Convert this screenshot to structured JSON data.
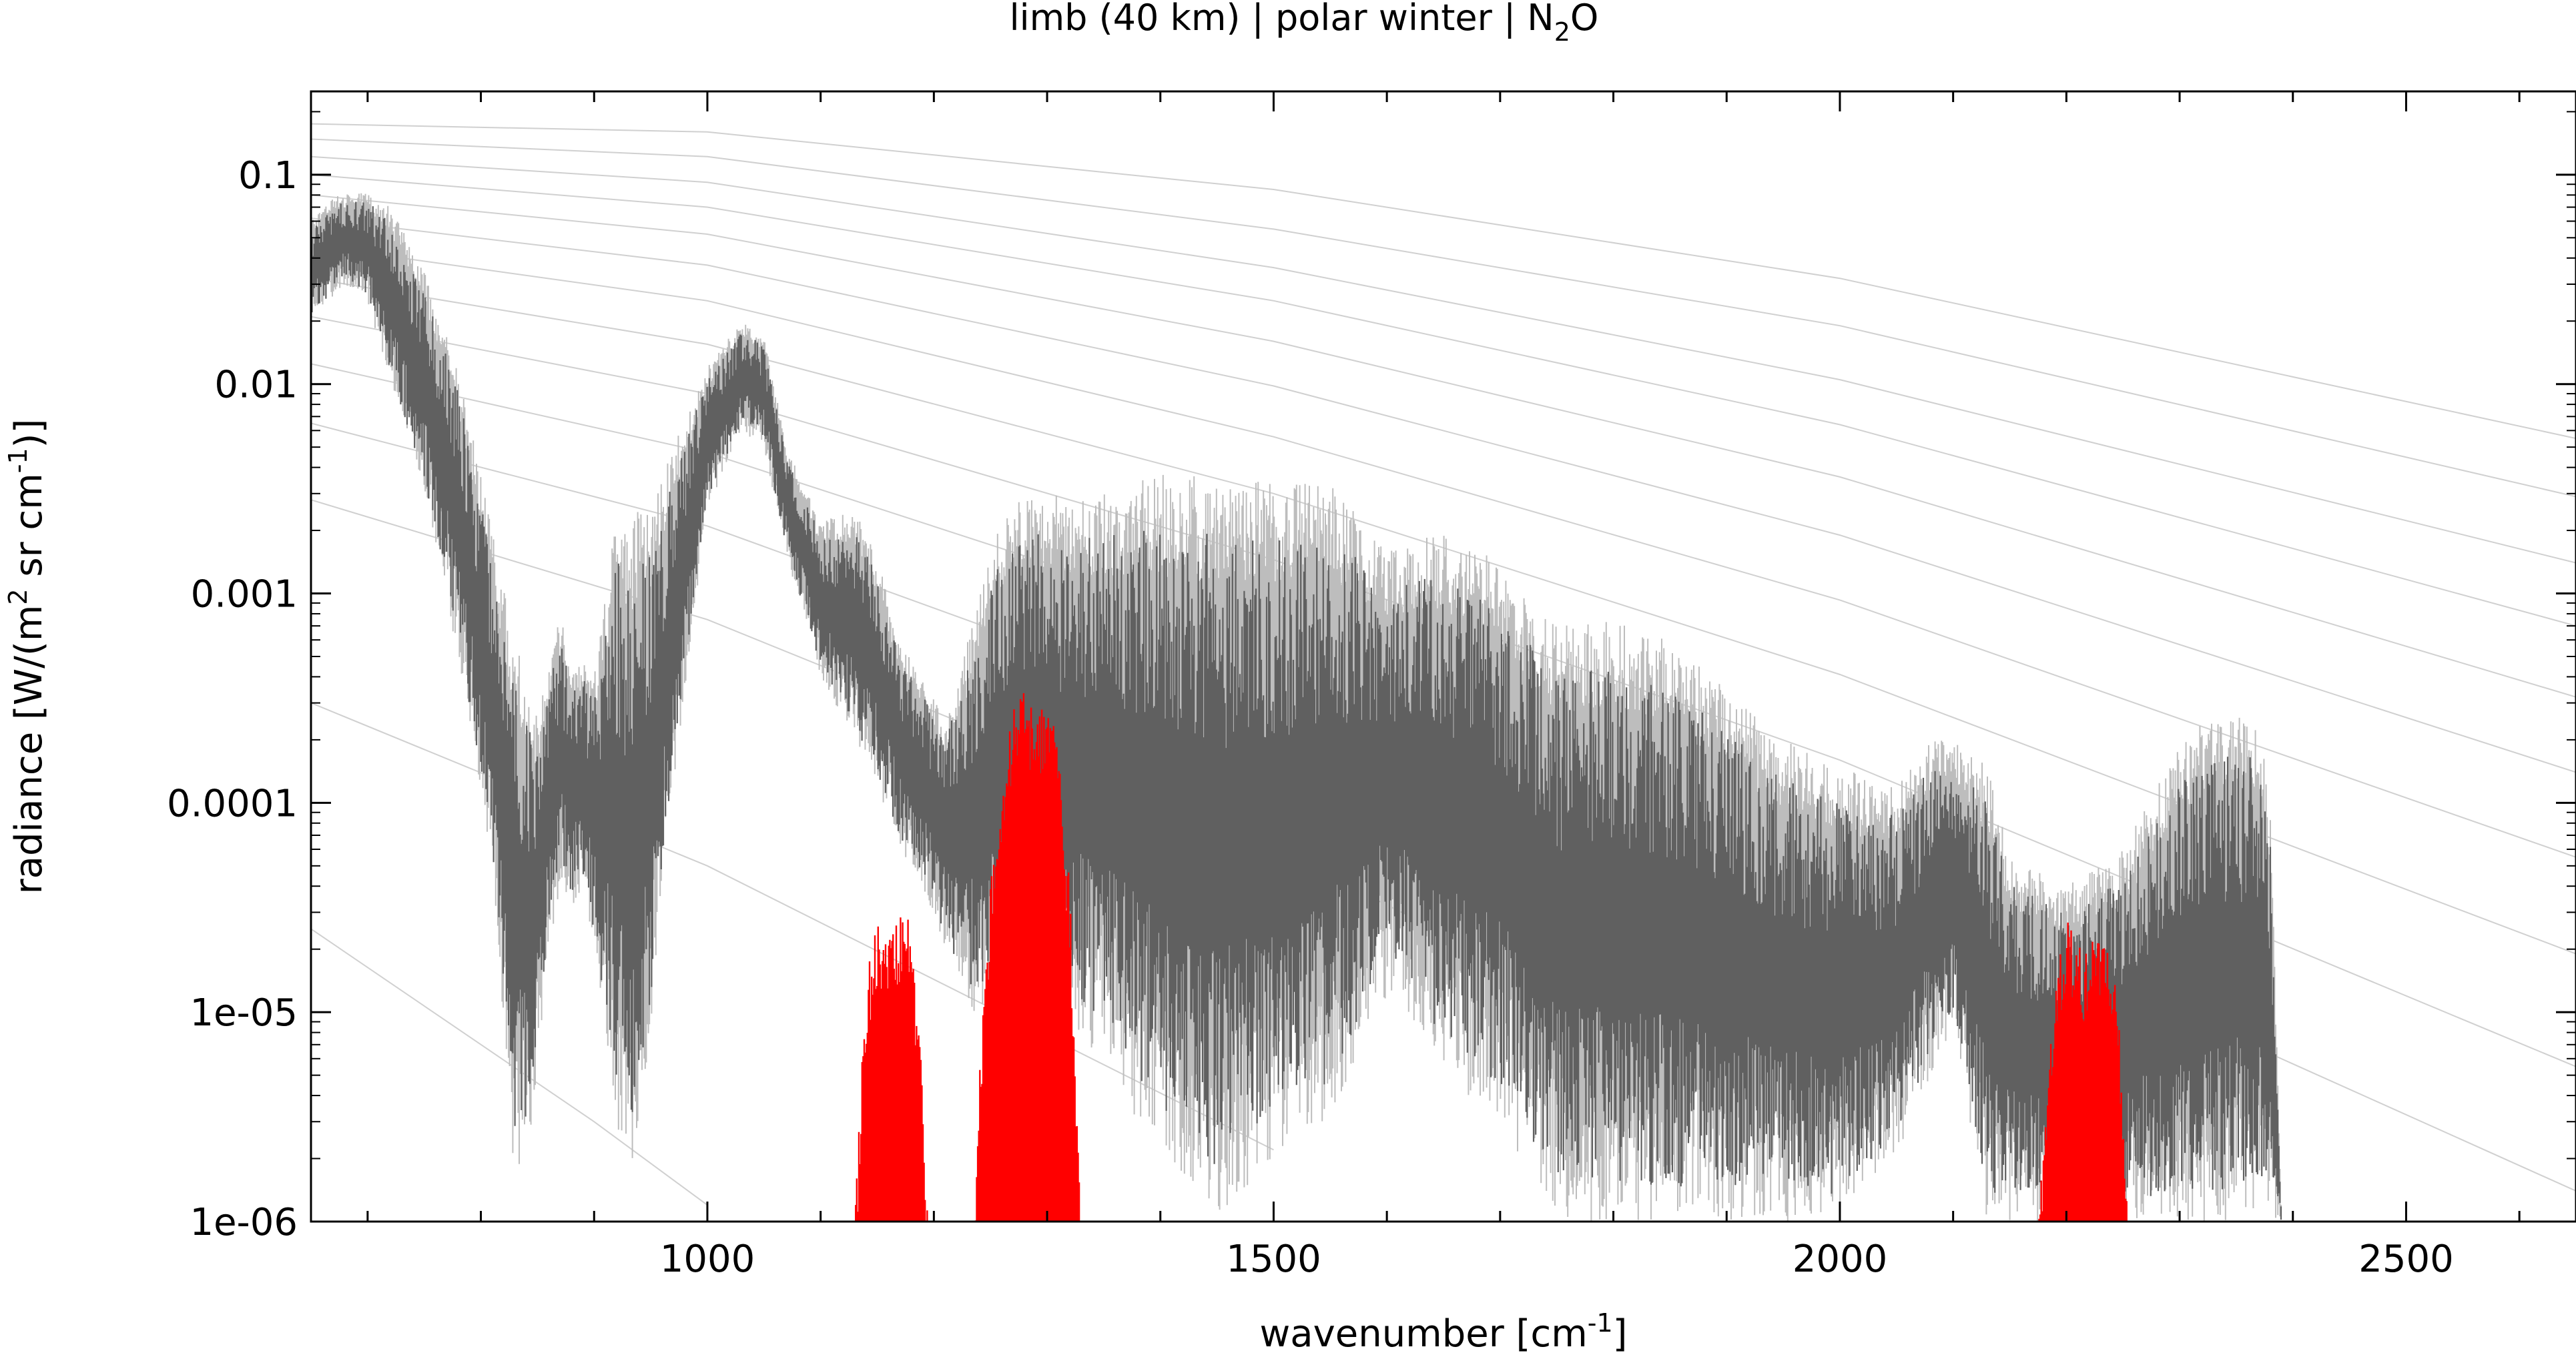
{
  "chart_data": {
    "type": "line",
    "title": {
      "prefix": "limb (40 km) | polar winter | N",
      "sub": "2",
      "suffix": "O"
    },
    "xlabel": {
      "prefix": "wavenumber [cm",
      "sup": "-1",
      "suffix": "]"
    },
    "ylabel": {
      "part1": "radiance [W/(m",
      "sup1": "2",
      "part2": " sr cm",
      "sup2": "-1",
      "part3": ")]"
    },
    "xlim": [
      650,
      2650
    ],
    "ylim": [
      1e-06,
      0.25
    ],
    "yscale": "log",
    "x_ticks": [
      {
        "value": 1000,
        "label": "1000"
      },
      {
        "value": 1500,
        "label": "1500"
      },
      {
        "value": 2000,
        "label": "2000"
      },
      {
        "value": 2500,
        "label": "2500"
      }
    ],
    "y_ticks": [
      {
        "value": 0.1,
        "label": "0.1"
      },
      {
        "value": 0.01,
        "label": "0.01"
      },
      {
        "value": 0.001,
        "label": "0.001"
      },
      {
        "value": 0.0001,
        "label": "0.0001"
      },
      {
        "value": 1e-05,
        "label": "1e-05"
      },
      {
        "value": 1e-06,
        "label": "1e-06"
      }
    ],
    "grid": false,
    "legend": "none",
    "colors": {
      "total_dark": "#606060",
      "total_light": "#bdbdbd",
      "target_gas": "#ff0000",
      "reference_curves": "#d0d0d0"
    },
    "reference_curves": [
      [
        [
          650,
          0.175
        ],
        [
          1000,
          0.16
        ],
        [
          1500,
          0.085
        ],
        [
          2000,
          0.032
        ],
        [
          2650,
          0.0055
        ]
      ],
      [
        [
          650,
          0.148
        ],
        [
          1000,
          0.122
        ],
        [
          1500,
          0.055
        ],
        [
          2000,
          0.019
        ],
        [
          2650,
          0.0029
        ]
      ],
      [
        [
          650,
          0.122
        ],
        [
          1000,
          0.092
        ],
        [
          1500,
          0.036
        ],
        [
          2000,
          0.0105
        ],
        [
          2650,
          0.0014
        ]
      ],
      [
        [
          650,
          0.1
        ],
        [
          1000,
          0.07
        ],
        [
          1500,
          0.025
        ],
        [
          2000,
          0.0064
        ],
        [
          2650,
          0.0007
        ]
      ],
      [
        [
          650,
          0.08
        ],
        [
          1000,
          0.052
        ],
        [
          1500,
          0.016
        ],
        [
          2000,
          0.0036
        ],
        [
          2650,
          0.00032
        ]
      ],
      [
        [
          650,
          0.062
        ],
        [
          1000,
          0.037
        ],
        [
          1500,
          0.0098
        ],
        [
          2000,
          0.0019
        ],
        [
          2650,
          0.00014
        ]
      ],
      [
        [
          650,
          0.046
        ],
        [
          1000,
          0.025
        ],
        [
          1500,
          0.0056
        ],
        [
          2000,
          0.00093
        ],
        [
          2650,
          5.5e-05
        ]
      ],
      [
        [
          650,
          0.032
        ],
        [
          1000,
          0.0155
        ],
        [
          1500,
          0.003
        ],
        [
          2000,
          0.00041
        ],
        [
          2650,
          1.9e-05
        ]
      ],
      [
        [
          650,
          0.021
        ],
        [
          1000,
          0.009
        ],
        [
          1500,
          0.00145
        ],
        [
          2000,
          0.00016
        ],
        [
          2650,
          5.5e-06
        ]
      ],
      [
        [
          650,
          0.0125
        ],
        [
          1000,
          0.0047
        ],
        [
          1500,
          0.00062
        ],
        [
          2000,
          5.3e-05
        ],
        [
          2650,
          1.4e-06
        ]
      ],
      [
        [
          650,
          0.0065
        ],
        [
          1000,
          0.0021
        ],
        [
          1500,
          0.00022
        ],
        [
          2000,
          1.4e-05
        ]
      ],
      [
        [
          650,
          0.0028
        ],
        [
          1000,
          0.00075
        ],
        [
          1500,
          6e-05
        ],
        [
          2000,
          2.8e-06
        ]
      ],
      [
        [
          650,
          0.0003
        ],
        [
          1000,
          5e-05
        ],
        [
          1500,
          2.2e-06
        ]
      ],
      [
        [
          650,
          2.5e-05
        ],
        [
          900,
          3e-06
        ],
        [
          1000,
          1.2e-06
        ]
      ]
    ],
    "series": [
      {
        "style": "total",
        "envelope_top": [
          [
            650,
            0.06
          ],
          [
            670,
            0.08
          ],
          [
            700,
            0.082
          ],
          [
            720,
            0.07
          ],
          [
            750,
            0.035
          ],
          [
            780,
            0.012
          ],
          [
            810,
            0.002
          ],
          [
            830,
            0.0006
          ],
          [
            850,
            0.00025
          ],
          [
            860,
            0.00045
          ],
          [
            870,
            0.0008
          ],
          [
            880,
            0.00045
          ],
          [
            890,
            0.0005
          ],
          [
            900,
            0.0004
          ],
          [
            910,
            0.001
          ],
          [
            920,
            0.0025
          ],
          [
            935,
            0.0025
          ],
          [
            950,
            0.0025
          ],
          [
            970,
            0.005
          ],
          [
            1000,
            0.012
          ],
          [
            1030,
            0.02
          ],
          [
            1050,
            0.017
          ],
          [
            1070,
            0.005
          ],
          [
            1100,
            0.0022
          ],
          [
            1130,
            0.0025
          ],
          [
            1150,
            0.0015
          ],
          [
            1170,
            0.0006
          ],
          [
            1190,
            0.0004
          ],
          [
            1210,
            0.00025
          ],
          [
            1230,
            0.0006
          ],
          [
            1260,
            0.0025
          ],
          [
            1290,
            0.003
          ],
          [
            1330,
            0.003
          ],
          [
            1400,
            0.0037
          ],
          [
            1450,
            0.0037
          ],
          [
            1500,
            0.0034
          ],
          [
            1550,
            0.0034
          ],
          [
            1600,
            0.0016
          ],
          [
            1650,
            0.002
          ],
          [
            1700,
            0.0015
          ],
          [
            1750,
            0.0007
          ],
          [
            1800,
            0.0008
          ],
          [
            1850,
            0.0006
          ],
          [
            1900,
            0.00035
          ],
          [
            1950,
            0.0002
          ],
          [
            2000,
            0.00015
          ],
          [
            2050,
            0.00012
          ],
          [
            2080,
            0.0002
          ],
          [
            2100,
            0.0002
          ],
          [
            2130,
            0.00015
          ],
          [
            2150,
            6e-05
          ],
          [
            2170,
            5e-05
          ],
          [
            2200,
            4e-05
          ],
          [
            2250,
            6e-05
          ],
          [
            2280,
            0.00012
          ],
          [
            2300,
            0.0002
          ],
          [
            2320,
            0.00024
          ],
          [
            2350,
            0.00028
          ],
          [
            2370,
            0.00026
          ],
          [
            2380,
            0.0001
          ],
          [
            2385,
            1e-05
          ],
          [
            2390,
            1e-06
          ]
        ],
        "envelope_bottom": [
          [
            650,
            0.02
          ],
          [
            680,
            0.03
          ],
          [
            700,
            0.025
          ],
          [
            720,
            0.01
          ],
          [
            750,
            0.003
          ],
          [
            780,
            0.0005
          ],
          [
            810,
            5e-05
          ],
          [
            830,
            1.5e-06
          ],
          [
            845,
            3e-06
          ],
          [
            860,
            2e-05
          ],
          [
            870,
            4e-05
          ],
          [
            880,
            3e-05
          ],
          [
            890,
            4e-05
          ],
          [
            900,
            2e-05
          ],
          [
            920,
            3e-06
          ],
          [
            935,
            1e-06
          ],
          [
            950,
            8e-06
          ],
          [
            970,
            0.00012
          ],
          [
            1000,
            0.0025
          ],
          [
            1030,
            0.006
          ],
          [
            1050,
            0.005
          ],
          [
            1070,
            0.0015
          ],
          [
            1100,
            0.0004
          ],
          [
            1130,
            0.0002
          ],
          [
            1150,
            0.00012
          ],
          [
            1170,
            6e-05
          ],
          [
            1190,
            4e-05
          ],
          [
            1210,
            2e-05
          ],
          [
            1230,
            1e-05
          ],
          [
            1260,
            1e-05
          ],
          [
            1290,
            1.2e-05
          ],
          [
            1330,
            8e-06
          ],
          [
            1400,
            2e-06
          ],
          [
            1450,
            1e-06
          ],
          [
            1500,
            2e-06
          ],
          [
            1550,
            3e-06
          ],
          [
            1600,
            1.2e-05
          ],
          [
            1650,
            5e-06
          ],
          [
            1700,
            3e-06
          ],
          [
            1750,
            1e-06
          ],
          [
            2000,
            1e-06
          ],
          [
            2050,
            2e-06
          ],
          [
            2080,
            5e-06
          ],
          [
            2100,
            8e-06
          ],
          [
            2130,
            1e-06
          ],
          [
            2390,
            1e-06
          ]
        ]
      },
      {
        "style": "target",
        "bands": [
          {
            "band": [
              [
                1130,
                1e-06
              ],
              [
                1140,
                1.5e-05
              ],
              [
                1150,
                3e-05
              ],
              [
                1160,
                2.5e-05
              ],
              [
                1170,
                3e-05
              ],
              [
                1180,
                3e-05
              ],
              [
                1190,
                5e-06
              ],
              [
                1195,
                1e-06
              ]
            ]
          },
          {
            "band": [
              [
                1235,
                1e-06
              ],
              [
                1245,
                2e-05
              ],
              [
                1255,
                8e-05
              ],
              [
                1270,
                0.0003
              ],
              [
                1280,
                0.00035
              ],
              [
                1290,
                0.00028
              ],
              [
                1300,
                0.0003
              ],
              [
                1310,
                0.00022
              ],
              [
                1320,
                4e-05
              ],
              [
                1330,
                1e-06
              ]
            ]
          },
          {
            "band": [
              [
                2175,
                1e-06
              ],
              [
                2190,
                1.5e-05
              ],
              [
                2200,
                3e-05
              ],
              [
                2215,
                2e-05
              ],
              [
                2230,
                2.5e-05
              ],
              [
                2245,
                1.5e-05
              ],
              [
                2255,
                1e-06
              ]
            ]
          }
        ]
      }
    ]
  }
}
